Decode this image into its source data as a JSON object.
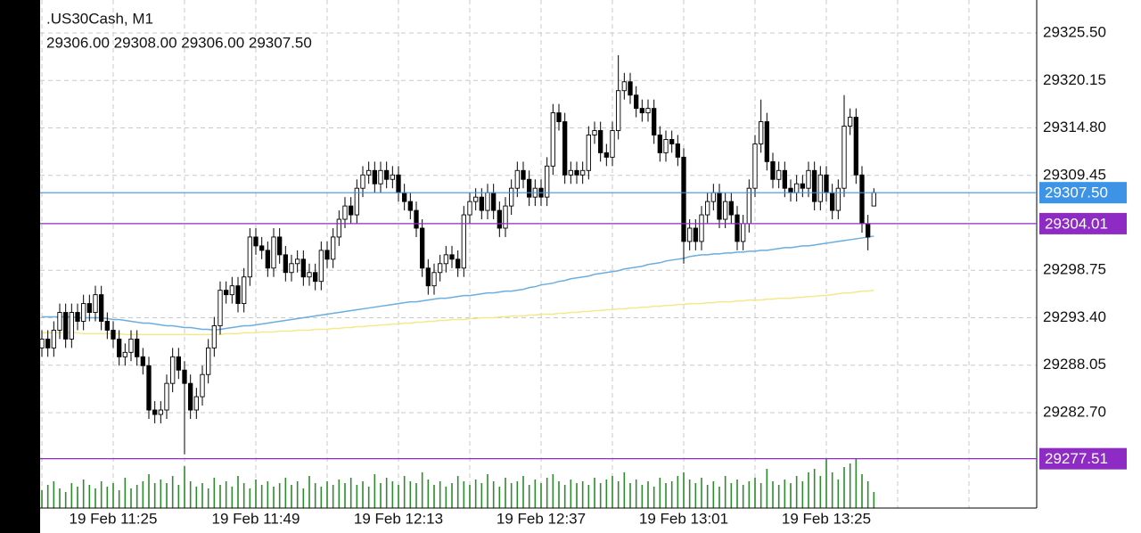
{
  "chart_data": {
    "type": "candlestick",
    "title": ".US30Cash, M1",
    "subtitle": "29306.00 29308.00 29306.00 29307.50",
    "categories": [
      null,
      null,
      null,
      null,
      null,
      null,
      null,
      null,
      null,
      null,
      null,
      null,
      "19 Feb 11:25",
      null,
      null,
      null,
      null,
      null,
      null,
      null,
      null,
      null,
      null,
      null,
      null,
      null,
      null,
      null,
      null,
      null,
      null,
      null,
      null,
      null,
      null,
      null,
      "19 Feb 11:49",
      null,
      null,
      null,
      null,
      null,
      null,
      null,
      null,
      null,
      null,
      null,
      null,
      null,
      null,
      null,
      null,
      null,
      null,
      null,
      null,
      null,
      null,
      null,
      "19 Feb 12:13",
      null,
      null,
      null,
      null,
      null,
      null,
      null,
      null,
      null,
      null,
      null,
      null,
      null,
      null,
      null,
      null,
      null,
      null,
      null,
      null,
      null,
      null,
      null,
      "19 Feb 12:37",
      null,
      null,
      null,
      null,
      null,
      null,
      null,
      null,
      null,
      null,
      null,
      null,
      null,
      null,
      null,
      null,
      null,
      null,
      null,
      null,
      null,
      null,
      null,
      "19 Feb 13:01",
      null,
      null,
      null,
      null,
      null,
      null,
      null,
      null,
      null,
      null,
      null,
      null,
      null,
      null,
      null,
      null,
      null,
      null,
      null,
      null,
      null,
      null,
      null,
      "19 Feb 13:25",
      null,
      null,
      null,
      null,
      null,
      null,
      null,
      null
    ],
    "open": [
      29290,
      29291,
      29290,
      29292,
      29294,
      29291,
      29294,
      29293,
      29295,
      29294,
      29296,
      29293,
      29292,
      29291,
      29289,
      29289.5,
      29291,
      29289,
      29288,
      29283,
      29282.5,
      29283,
      29286,
      29289,
      29287.5,
      29286,
      29283,
      29284.5,
      29287,
      29290,
      29292.5,
      29296.5,
      29296,
      29297,
      29295,
      29298,
      29302.5,
      29301.5,
      29301,
      29299,
      29302.5,
      29300.5,
      29298.5,
      29299.5,
      29300,
      29298,
      29298.5,
      29297.5,
      29301,
      29300,
      29302.5,
      29304.5,
      29306,
      29305,
      29308,
      29309.5,
      29310,
      29308.5,
      29310,
      29309,
      29309.5,
      29307.5,
      29306.5,
      29305.5,
      29303.5,
      29299,
      29297,
      29298.5,
      29299.5,
      29300.5,
      29300,
      29299,
      29305,
      29306.5,
      29307,
      29305.5,
      29307.5,
      29305.5,
      29303.5,
      29306,
      29308,
      29310,
      29309,
      29307,
      29308,
      29307,
      29310.5,
      29316.5,
      29315.5,
      29309.5,
      29310,
      29309.5,
      29310,
      29314,
      29314.5,
      29312,
      29311.5,
      29314.5,
      29319,
      29320,
      29318.5,
      29317,
      29316.5,
      29317,
      29314,
      29312,
      29313.5,
      29313,
      29311.5,
      29302,
      29303.5,
      29302,
      29305,
      29306.5,
      29307.5,
      29304.5,
      29306.5,
      29305,
      29302,
      29304,
      29308,
      29313,
      29315.5,
      29311,
      29309,
      29310,
      29308,
      29307.5,
      29308.5,
      29308,
      29310,
      29306.5,
      29309.5,
      29307.5,
      29305.5,
      29308,
      29315,
      29316,
      29309.5,
      29304,
      29306
    ],
    "high": [
      29292,
      29292,
      29293,
      29295,
      29295,
      29295,
      29295,
      29296,
      29296,
      29297,
      29297,
      29294,
      29293,
      29292,
      29290.5,
      29292,
      29292,
      29290,
      29289,
      29284,
      29284,
      29287,
      29290,
      29290,
      29288.5,
      29287,
      29285.5,
      29288,
      29291,
      29293.5,
      29297.5,
      29297.5,
      29298,
      29298,
      29299,
      29303.5,
      29303.5,
      29302.5,
      29302,
      29303.5,
      29303.5,
      29301.5,
      29300.5,
      29301,
      29301,
      29299.5,
      29299.5,
      29302,
      29302,
      29303.5,
      29305.5,
      29307,
      29307,
      29309,
      29310.5,
      29311,
      29311,
      29311,
      29311,
      29310.5,
      29310.5,
      29308.5,
      29307.5,
      29306.5,
      29304.5,
      29300,
      29299.5,
      29300.5,
      29301.5,
      29301.5,
      29301,
      29306,
      29307.5,
      29308,
      29308,
      29308.5,
      29308.5,
      29306.5,
      29307,
      29309,
      29311,
      29311,
      29310,
      29309,
      29309,
      29311.5,
      29317.5,
      29317.5,
      29316.5,
      29311,
      29311,
      29311,
      29315,
      29315.5,
      29315.5,
      29313,
      29315.5,
      29323,
      29321,
      29321,
      29319.5,
      29318,
      29318,
      29318,
      29315,
      29314.5,
      29314.5,
      29314,
      29312.5,
      29304.5,
      29304.5,
      29306,
      29307.5,
      29308.5,
      29308.5,
      29307.5,
      29307.5,
      29306,
      29305,
      29309,
      29314,
      29318,
      29316.5,
      29312,
      29311,
      29311,
      29309,
      29309.5,
      29309.5,
      29311,
      29311,
      29310.5,
      29310.5,
      29308.5,
      29309,
      29318.5,
      29317,
      29317,
      29310.5,
      29305,
      29308
    ],
    "low": [
      29289,
      29289,
      29289,
      29291,
      29290,
      29290,
      29292,
      29292,
      29293,
      29293,
      29292,
      29291,
      29290,
      29288,
      29288,
      29288.5,
      29288,
      29287,
      29282,
      29281.5,
      29281.5,
      29282,
      29285,
      29286.5,
      29278,
      29282,
      29282,
      29283.5,
      29286,
      29289,
      29291.5,
      29295,
      29295,
      29294,
      29294,
      29297,
      29300.5,
      29300,
      29298,
      29298,
      29299.5,
      29297.5,
      29297.5,
      29298.5,
      29297,
      29297,
      29296.5,
      29296.5,
      29299,
      29299,
      29301.5,
      29303.5,
      29304,
      29304,
      29307,
      29308.5,
      29307.5,
      29307.5,
      29308,
      29308,
      29306.5,
      29305.5,
      29304.5,
      29302.5,
      29298,
      29296,
      29296,
      29297.5,
      29298.5,
      29299,
      29298,
      29298,
      29304,
      29305.5,
      29304.5,
      29304.5,
      29304.5,
      29302.5,
      29302.5,
      29305,
      29307,
      29308,
      29306,
      29306,
      29306,
      29306,
      29309.5,
      29314.5,
      29308.5,
      29308.5,
      29308.5,
      29308.5,
      29309,
      29313,
      29311,
      29310.5,
      29310.5,
      29313.5,
      29318,
      29317.5,
      29316,
      29315.5,
      29315.5,
      29313,
      29311,
      29311,
      29312,
      29310.5,
      29299.5,
      29301,
      29301,
      29301,
      29304,
      29305.5,
      29303.5,
      29303.5,
      29304,
      29301,
      29301,
      29303,
      29307,
      29312,
      29310,
      29308,
      29308,
      29307,
      29306.5,
      29306.5,
      29307,
      29307,
      29305.5,
      29305.5,
      29306.5,
      29304.5,
      29304.5,
      29307,
      29314,
      29308.5,
      29303,
      29301,
      29306
    ],
    "close": [
      29291,
      29290,
      29292,
      29294,
      29291,
      29294,
      29293,
      29295,
      29294,
      29296,
      29293,
      29292,
      29291,
      29289,
      29289.5,
      29291,
      29289,
      29288,
      29283,
      29282.5,
      29283,
      29286,
      29289,
      29287.5,
      29286,
      29283,
      29284.5,
      29287,
      29290,
      29292.5,
      29296.5,
      29296,
      29297,
      29295,
      29298,
      29302.5,
      29301.5,
      29301,
      29299,
      29302.5,
      29300.5,
      29298.5,
      29299.5,
      29300,
      29298,
      29298.5,
      29297.5,
      29301,
      29300,
      29302.5,
      29304.5,
      29306,
      29305,
      29308,
      29309.5,
      29310,
      29308.5,
      29310,
      29309,
      29309.5,
      29307.5,
      29306.5,
      29305.5,
      29303.5,
      29299,
      29297,
      29298.5,
      29299.5,
      29300.5,
      29300,
      29299,
      29305,
      29306.5,
      29307,
      29305.5,
      29307.5,
      29305.5,
      29303.5,
      29306,
      29308,
      29310,
      29309,
      29307,
      29308,
      29307,
      29310.5,
      29316.5,
      29315.5,
      29309.5,
      29310,
      29309.5,
      29310,
      29314,
      29314.5,
      29312,
      29311.5,
      29314.5,
      29319,
      29320,
      29318.5,
      29317,
      29316.5,
      29317,
      29314,
      29312,
      29313.5,
      29313,
      29311.5,
      29302,
      29303.5,
      29302,
      29305,
      29306.5,
      29307.5,
      29304.5,
      29306.5,
      29305,
      29302,
      29304,
      29308,
      29313,
      29315.5,
      29311,
      29309,
      29310,
      29308,
      29307.5,
      29308.5,
      29308,
      29310,
      29306.5,
      29309.5,
      29307.5,
      29305.5,
      29308,
      29315,
      29316,
      29309.5,
      29304,
      29302.5,
      29307.5
    ],
    "volume": [
      20,
      26,
      30,
      22,
      18,
      28,
      24,
      32,
      26,
      22,
      30,
      24,
      28,
      20,
      34,
      22,
      26,
      30,
      38,
      28,
      32,
      28,
      36,
      26,
      47,
      30,
      24,
      28,
      22,
      34,
      26,
      30,
      24,
      36,
      28,
      22,
      32,
      26,
      30,
      24,
      28,
      34,
      26,
      30,
      22,
      36,
      28,
      24,
      30,
      26,
      32,
      28,
      34,
      26,
      30,
      24,
      38,
      28,
      34,
      30,
      26,
      36,
      30,
      28,
      40,
      32,
      26,
      30,
      24,
      28,
      36,
      30,
      26,
      32,
      28,
      38,
      30,
      24,
      34,
      28,
      30,
      36,
      26,
      32,
      28,
      34,
      38,
      30,
      26,
      32,
      28,
      30,
      26,
      34,
      28,
      32,
      36,
      30,
      40,
      28,
      32,
      26,
      30,
      24,
      34,
      28,
      30,
      36,
      40,
      32,
      28,
      34,
      26,
      30,
      24,
      36,
      28,
      32,
      26,
      30,
      34,
      28,
      44,
      30,
      26,
      32,
      28,
      36,
      30,
      40,
      44,
      36,
      56,
      40,
      32,
      46,
      50,
      56,
      38,
      30,
      18
    ],
    "volume_ylim": [
      0,
      60
    ],
    "volume_color": "#2e8b2e",
    "up_color": "#ffffff",
    "down_color": "#000000",
    "overlays": [
      {
        "color": "#6aaee0",
        "values": [
          29293.5,
          29293.5,
          29293.5,
          29293.5,
          29293.5,
          29293.5,
          29293.4,
          29293.4,
          29293.4,
          29293.4,
          29293.4,
          29293.3,
          29293.2,
          29293.2,
          29293.1,
          29293,
          29292.9,
          29292.8,
          29292.8,
          29292.7,
          29292.6,
          29292.5,
          29292.5,
          29292.4,
          29292.3,
          29292.3,
          29292.2,
          29292.1,
          29292.1,
          29292,
          29292.1,
          29292.2,
          29292.3,
          29292.4,
          29292.5,
          29292.5,
          29292.6,
          29292.7,
          29292.8,
          29292.9,
          29293,
          29293.1,
          29293.2,
          29293.3,
          29293.4,
          29293.5,
          29293.6,
          29293.7,
          29293.8,
          29293.9,
          29294,
          29294.1,
          29294.2,
          29294.3,
          29294.4,
          29294.5,
          29294.6,
          29294.7,
          29294.8,
          29294.9,
          29295,
          29295.1,
          29295.2,
          29295.2,
          29295.3,
          29295.4,
          29295.5,
          29295.6,
          29295.6,
          29295.7,
          29295.8,
          29295.9,
          29295.9,
          29296,
          29296.1,
          29296.2,
          29296.2,
          29296.3,
          29296.4,
          29296.4,
          29296.5,
          29296.6,
          29296.8,
          29296.9,
          29297.1,
          29297.2,
          29297.3,
          29297.5,
          29297.6,
          29297.8,
          29297.9,
          29298,
          29298.1,
          29298.3,
          29298.4,
          29298.5,
          29298.6,
          29298.7,
          29298.9,
          29299,
          29299.1,
          29299.2,
          29299.4,
          29299.5,
          29299.6,
          29299.8,
          29299.9,
          29300,
          29300.1,
          29300.3,
          29300.4,
          29300.5,
          29300.5,
          29300.6,
          29300.6,
          29300.7,
          29300.7,
          29300.8,
          29300.8,
          29300.9,
          29300.9,
          29301,
          29301,
          29301.1,
          29301.2,
          29301.3,
          29301.3,
          29301.4,
          29301.5,
          29301.5,
          29301.6,
          29301.7,
          29301.8,
          29301.9,
          29302,
          29302.1,
          29302.2,
          29302.3,
          29302.4,
          29302.5,
          29302.6
        ]
      },
      {
        "color": "#f2e98a",
        "values": [
          29291.7,
          29291.7,
          29291.7,
          29291.7,
          29291.7,
          29291.7,
          29291.7,
          29291.6,
          29291.6,
          29291.6,
          29291.6,
          29291.6,
          29291.6,
          29291.6,
          29291.5,
          29291.5,
          29291.5,
          29291.5,
          29291.5,
          29291.5,
          29291.5,
          29291.5,
          29291.5,
          29291.5,
          29291.5,
          29291.5,
          29291.5,
          29291.5,
          29291.5,
          29291.5,
          29291.5,
          29291.6,
          29291.6,
          29291.6,
          29291.7,
          29291.7,
          29291.7,
          29291.8,
          29291.8,
          29291.8,
          29291.9,
          29291.9,
          29291.9,
          29292,
          29292,
          29292,
          29292.1,
          29292.1,
          29292.1,
          29292.2,
          29292.2,
          29292.3,
          29292.3,
          29292.4,
          29292.4,
          29292.5,
          29292.5,
          29292.6,
          29292.6,
          29292.7,
          29292.7,
          29292.8,
          29292.8,
          29292.9,
          29292.9,
          29293,
          29293,
          29293.1,
          29293.1,
          29293.2,
          29293.2,
          29293.2,
          29293.3,
          29293.3,
          29293.4,
          29293.4,
          29293.4,
          29293.5,
          29293.5,
          29293.6,
          29293.6,
          29293.6,
          29293.7,
          29293.7,
          29293.8,
          29293.8,
          29293.8,
          29293.9,
          29293.9,
          29294,
          29294,
          29294.1,
          29294.1,
          29294.2,
          29294.2,
          29294.3,
          29294.3,
          29294.4,
          29294.4,
          29294.5,
          29294.5,
          29294.6,
          29294.6,
          29294.7,
          29294.7,
          29294.8,
          29294.8,
          29294.9,
          29294.9,
          29295,
          29295,
          29295,
          29295.1,
          29295.1,
          29295.2,
          29295.2,
          29295.2,
          29295.3,
          29295.3,
          29295.4,
          29295.4,
          29295.4,
          29295.5,
          29295.5,
          29295.6,
          29295.6,
          29295.6,
          29295.7,
          29295.7,
          29295.8,
          29295.8,
          29295.9,
          29295.9,
          29296,
          29296.1,
          29296.2,
          29296.2,
          29296.3,
          29296.4,
          29296.4,
          29296.5
        ]
      }
    ],
    "price_lines": [
      {
        "value": 29307.5,
        "label": "29307.50",
        "color": "#3d93e6"
      },
      {
        "value": 29304.01,
        "label": "29304.01",
        "color": "#8e2bc4"
      },
      {
        "value": 29277.51,
        "label": "29277.51",
        "color": "#8e2bc4"
      }
    ],
    "ylim": [
      29271.95,
      29329.22
    ],
    "yticks": [
      {
        "value": 29325.5,
        "label": "29325.50"
      },
      29320.15,
      {
        "value": 29314.8,
        "label": "29314.80"
      },
      29309.45,
      29298.75,
      {
        "value": 29293.4,
        "label": "29293.40"
      },
      29288.05,
      {
        "value": 29282.7,
        "label": "29282.70"
      }
    ],
    "grid": true
  }
}
